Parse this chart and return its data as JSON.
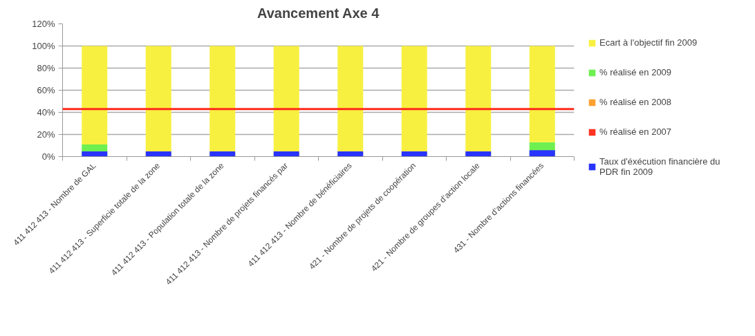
{
  "chart_data": {
    "type": "bar",
    "title": "Avancement Axe 4",
    "stacked": true,
    "categories": [
      "411 412 413 - Nombre de GAL",
      "411 412 413 - Superficie totale de la zone",
      "411 412 413 - Population totale de la zone",
      "411 412 413 - Nombre de projets financés par",
      "411 412 413 - Nombre de bénéficiaires",
      "421 - Nombre de projets de coopération",
      "421 - Nombre de groupes d’action locale",
      "431 - Nombre d’actions financées"
    ],
    "series": [
      {
        "name": "% réalisé en 2007",
        "color": "#ff3322",
        "values": [
          0,
          0,
          0,
          0,
          0,
          0,
          0,
          0
        ]
      },
      {
        "name": "% réalisé en 2008",
        "color": "#ffa030",
        "values": [
          0,
          0,
          0,
          0,
          0,
          0,
          0,
          0
        ]
      },
      {
        "name": "% réalisé en 2009",
        "color": "#6ef050",
        "values": [
          11,
          0,
          0,
          0,
          0,
          0,
          0,
          13
        ]
      },
      {
        "name": "Ecart à l'objectif fin 2009",
        "color": "#f8f040",
        "values": [
          89,
          100,
          100,
          100,
          100,
          100,
          100,
          87
        ]
      },
      {
        "name": "Taux d'éxécution financière du PDR fin 2009",
        "color": "#2a34ff",
        "type": "scatter",
        "marker": "square",
        "values": [
          1,
          1,
          1,
          1,
          1,
          1,
          1,
          2
        ]
      }
    ],
    "ylim": [
      0,
      120
    ],
    "yticks": [
      {
        "value": 0,
        "label": "0%"
      },
      {
        "value": 20,
        "label": "20%"
      },
      {
        "value": 40,
        "label": "40%"
      },
      {
        "value": 60,
        "label": "60%"
      },
      {
        "value": 80,
        "label": "80%"
      },
      {
        "value": 100,
        "label": "100%"
      },
      {
        "value": 120,
        "label": "120%"
      }
    ],
    "grid": "y",
    "legend": "right",
    "ref_lines": [
      {
        "axis": "y",
        "value": 43,
        "color": "#ff2a1a"
      }
    ]
  }
}
